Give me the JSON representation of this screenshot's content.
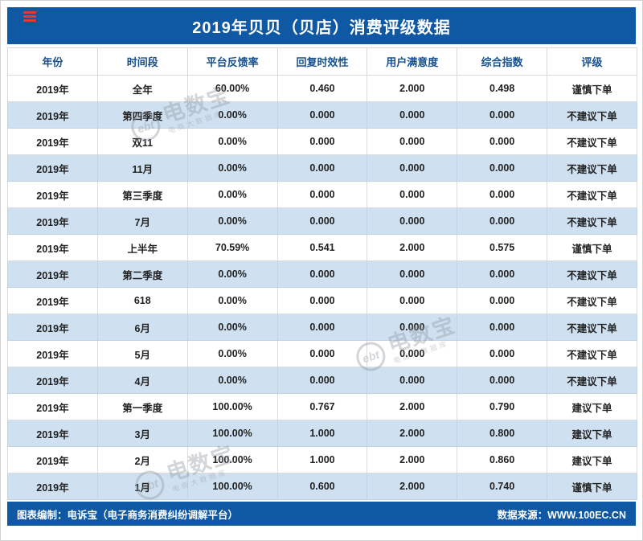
{
  "title": "2019年贝贝（贝店）消费评级数据",
  "table": {
    "headers": [
      "年份",
      "时间段",
      "平台反馈率",
      "回复时效性",
      "用户满意度",
      "综合指数",
      "评级"
    ],
    "rows": [
      [
        "2019年",
        "全年",
        "60.00%",
        "0.460",
        "2.000",
        "0.498",
        "谨慎下单"
      ],
      [
        "2019年",
        "第四季度",
        "0.00%",
        "0.000",
        "0.000",
        "0.000",
        "不建议下单"
      ],
      [
        "2019年",
        "双11",
        "0.00%",
        "0.000",
        "0.000",
        "0.000",
        "不建议下单"
      ],
      [
        "2019年",
        "11月",
        "0.00%",
        "0.000",
        "0.000",
        "0.000",
        "不建议下单"
      ],
      [
        "2019年",
        "第三季度",
        "0.00%",
        "0.000",
        "0.000",
        "0.000",
        "不建议下单"
      ],
      [
        "2019年",
        "7月",
        "0.00%",
        "0.000",
        "0.000",
        "0.000",
        "不建议下单"
      ],
      [
        "2019年",
        "上半年",
        "70.59%",
        "0.541",
        "2.000",
        "0.575",
        "谨慎下单"
      ],
      [
        "2019年",
        "第二季度",
        "0.00%",
        "0.000",
        "0.000",
        "0.000",
        "不建议下单"
      ],
      [
        "2019年",
        "618",
        "0.00%",
        "0.000",
        "0.000",
        "0.000",
        "不建议下单"
      ],
      [
        "2019年",
        "6月",
        "0.00%",
        "0.000",
        "0.000",
        "0.000",
        "不建议下单"
      ],
      [
        "2019年",
        "5月",
        "0.00%",
        "0.000",
        "0.000",
        "0.000",
        "不建议下单"
      ],
      [
        "2019年",
        "4月",
        "0.00%",
        "0.000",
        "0.000",
        "0.000",
        "不建议下单"
      ],
      [
        "2019年",
        "第一季度",
        "100.00%",
        "0.767",
        "2.000",
        "0.790",
        "建议下单"
      ],
      [
        "2019年",
        "3月",
        "100.00%",
        "1.000",
        "2.000",
        "0.800",
        "建议下单"
      ],
      [
        "2019年",
        "2月",
        "100.00%",
        "1.000",
        "2.000",
        "0.860",
        "建议下单"
      ],
      [
        "2019年",
        "1月",
        "100.00%",
        "0.600",
        "2.000",
        "0.740",
        "谨慎下单"
      ]
    ]
  },
  "footer": {
    "left": "图表编制：电诉宝（电子商务消费纠纷调解平台）",
    "right": "数据来源：WWW.100EC.CN"
  },
  "watermark": {
    "logo": "ebt",
    "name": "电数宝",
    "tagline": "电商大数据库"
  },
  "colors": {
    "bar_blue": "#0e58a4",
    "stripe_blue": "#cfe0f0",
    "header_text_blue": "#17508f",
    "accent_red": "#e0392e"
  },
  "chart_data": {
    "type": "table",
    "title": "2019年贝贝（贝店）消费评级数据",
    "columns": [
      "年份",
      "时间段",
      "平台反馈率",
      "回复时效性",
      "用户满意度",
      "综合指数",
      "评级"
    ],
    "rows": [
      [
        "2019年",
        "全年",
        "60.00%",
        "0.460",
        "2.000",
        "0.498",
        "谨慎下单"
      ],
      [
        "2019年",
        "第四季度",
        "0.00%",
        "0.000",
        "0.000",
        "0.000",
        "不建议下单"
      ],
      [
        "2019年",
        "双11",
        "0.00%",
        "0.000",
        "0.000",
        "0.000",
        "不建议下单"
      ],
      [
        "2019年",
        "11月",
        "0.00%",
        "0.000",
        "0.000",
        "0.000",
        "不建议下单"
      ],
      [
        "2019年",
        "第三季度",
        "0.00%",
        "0.000",
        "0.000",
        "0.000",
        "不建议下单"
      ],
      [
        "2019年",
        "7月",
        "0.00%",
        "0.000",
        "0.000",
        "0.000",
        "不建议下单"
      ],
      [
        "2019年",
        "上半年",
        "70.59%",
        "0.541",
        "2.000",
        "0.575",
        "谨慎下单"
      ],
      [
        "2019年",
        "第二季度",
        "0.00%",
        "0.000",
        "0.000",
        "0.000",
        "不建议下单"
      ],
      [
        "2019年",
        "618",
        "0.00%",
        "0.000",
        "0.000",
        "0.000",
        "不建议下单"
      ],
      [
        "2019年",
        "6月",
        "0.00%",
        "0.000",
        "0.000",
        "0.000",
        "不建议下单"
      ],
      [
        "2019年",
        "5月",
        "0.00%",
        "0.000",
        "0.000",
        "0.000",
        "不建议下单"
      ],
      [
        "2019年",
        "4月",
        "0.00%",
        "0.000",
        "0.000",
        "0.000",
        "不建议下单"
      ],
      [
        "2019年",
        "第一季度",
        "100.00%",
        "0.767",
        "2.000",
        "0.790",
        "建议下单"
      ],
      [
        "2019年",
        "3月",
        "100.00%",
        "1.000",
        "2.000",
        "0.800",
        "建议下单"
      ],
      [
        "2019年",
        "2月",
        "100.00%",
        "1.000",
        "2.000",
        "0.860",
        "建议下单"
      ],
      [
        "2019年",
        "1月",
        "100.00%",
        "0.600",
        "2.000",
        "0.740",
        "谨慎下单"
      ]
    ]
  }
}
